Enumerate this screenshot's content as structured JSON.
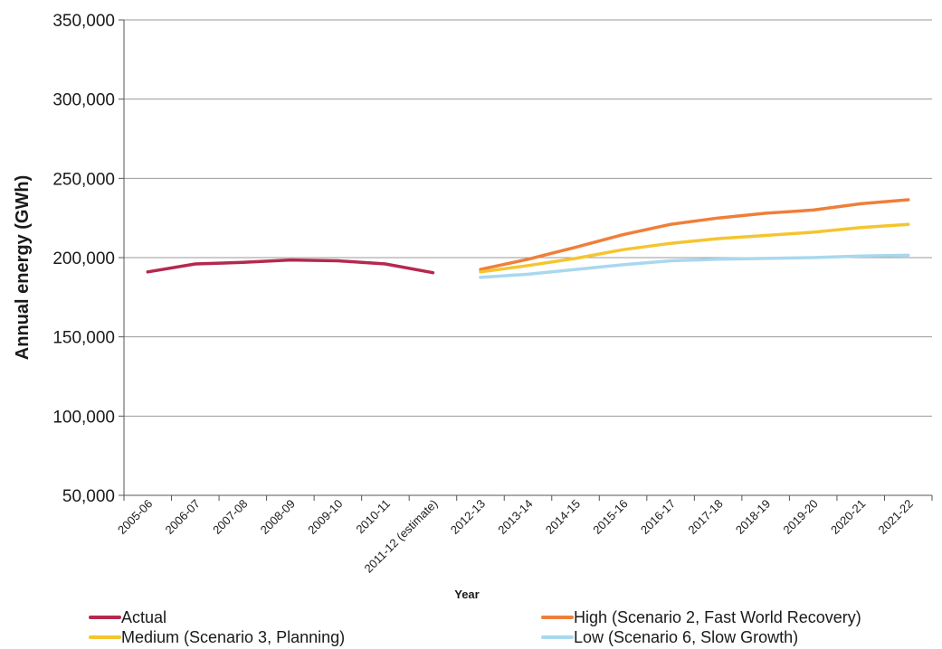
{
  "chart_data": {
    "type": "line",
    "title": "",
    "xlabel": "Year",
    "ylabel": "Annual energy (GWh)",
    "categories": [
      "2005-06",
      "2006-07",
      "2007-08",
      "2008-09",
      "2009-10",
      "2010-11",
      "2011-12 (estimate)",
      "2012-13",
      "2013-14",
      "2014-15",
      "2015-16",
      "2016-17",
      "2017-18",
      "2018-19",
      "2019-20",
      "2020-21",
      "2021-22"
    ],
    "yticks": [
      "50,000",
      "100,000",
      "150,000",
      "200,000",
      "250,000",
      "300,000",
      "350,000"
    ],
    "ylim": [
      50000,
      350000
    ],
    "grid": "horizontal",
    "legend_position": "bottom",
    "series": [
      {
        "name": "Actual",
        "color": "#b5284e",
        "values": [
          191000,
          196000,
          197000,
          198500,
          198000,
          196000,
          190500,
          null,
          null,
          null,
          null,
          null,
          null,
          null,
          null,
          null,
          null
        ]
      },
      {
        "name": "High (Scenario 2, Fast World Recovery)",
        "color": "#ef7f3a",
        "values": [
          null,
          null,
          null,
          null,
          null,
          null,
          null,
          192500,
          199000,
          206500,
          214500,
          221000,
          225000,
          228000,
          230000,
          234000,
          236500
        ]
      },
      {
        "name": "Medium (Scenario 3, Planning)",
        "color": "#f5c52f",
        "values": [
          null,
          null,
          null,
          null,
          null,
          null,
          null,
          191000,
          195000,
          199500,
          205000,
          209000,
          212000,
          214000,
          216000,
          219000,
          221000
        ]
      },
      {
        "name": "Low (Scenario 6, Slow Growth)",
        "color": "#a8d8ef",
        "values": [
          null,
          null,
          null,
          null,
          null,
          null,
          null,
          187500,
          189500,
          192500,
          195500,
          198000,
          199000,
          199500,
          200000,
          201000,
          201500
        ]
      }
    ]
  }
}
